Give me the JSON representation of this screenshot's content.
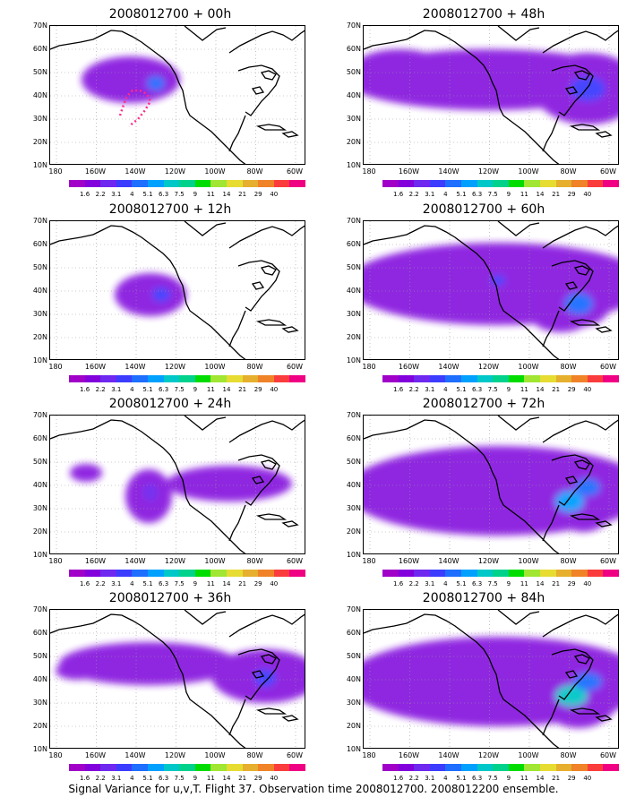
{
  "panels": [
    {
      "title": "2008012700 + 00h"
    },
    {
      "title": "2008012700 + 48h"
    },
    {
      "title": "2008012700 + 12h"
    },
    {
      "title": "2008012700 + 60h"
    },
    {
      "title": "2008012700 + 24h"
    },
    {
      "title": "2008012700 + 72h"
    },
    {
      "title": "2008012700 + 36h"
    },
    {
      "title": "2008012700 + 84h"
    }
  ],
  "lat_labels": [
    "70N",
    "60N",
    "50N",
    "40N",
    "30N",
    "20N",
    "10N"
  ],
  "lon_labels": [
    "180",
    "160W",
    "140W",
    "120W",
    "100W",
    "80W",
    "60W"
  ],
  "colorbar": {
    "labels": [
      "1.6",
      "2.2",
      "3.1",
      "4",
      "5.1",
      "6.3",
      "7.5",
      "9",
      "11",
      "14",
      "21",
      "29",
      "40"
    ],
    "colors": [
      "#a000c8",
      "#8200dc",
      "#6e28f0",
      "#3c3cff",
      "#1e6eff",
      "#00a0ff",
      "#00c8c8",
      "#00d28c",
      "#00dc00",
      "#a0e632",
      "#e6dc32",
      "#e6af2d",
      "#f08228",
      "#fa3c3c",
      "#f00082"
    ]
  },
  "caption": "Signal Variance for u,v,T. Flight 37. Observation time 2008012700. 2008012200 ensemble."
}
